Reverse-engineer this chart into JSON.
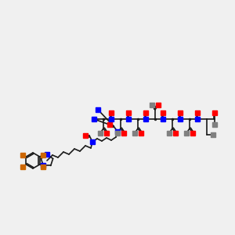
{
  "background_color": "#f0f0f0",
  "bond_color": "#1a1a1a",
  "atom_colors": {
    "O": "#ff0000",
    "N": "#0000ff",
    "Br": "#cc6600",
    "OH": "#808080",
    "NH2": "#808080",
    "C": "#1a1a1a"
  },
  "figsize": [
    3.0,
    3.0
  ],
  "dpi": 100
}
